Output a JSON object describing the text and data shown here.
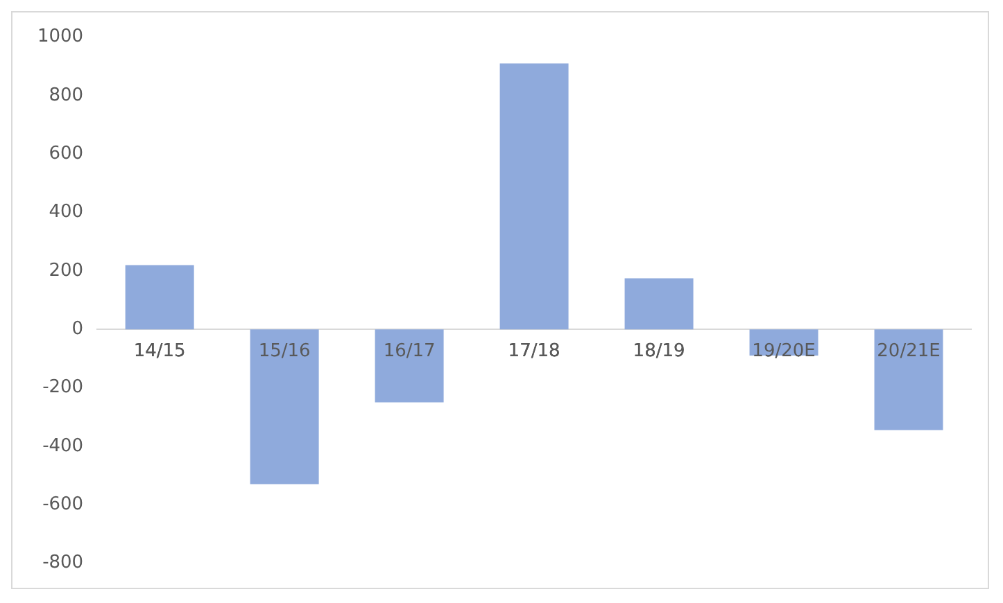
{
  "chart_data": {
    "type": "bar",
    "categories": [
      "14/15",
      "15/16",
      "16/17",
      "17/18",
      "18/19",
      "19/20E",
      "20/21E"
    ],
    "values": [
      220,
      -530,
      -250,
      910,
      175,
      -90,
      -345
    ],
    "color": "#8faadc",
    "ylim": [
      -800,
      1000
    ],
    "yticks": [
      -800,
      -600,
      -400,
      -200,
      0,
      200,
      400,
      600,
      800,
      1000
    ],
    "grid": false
  }
}
